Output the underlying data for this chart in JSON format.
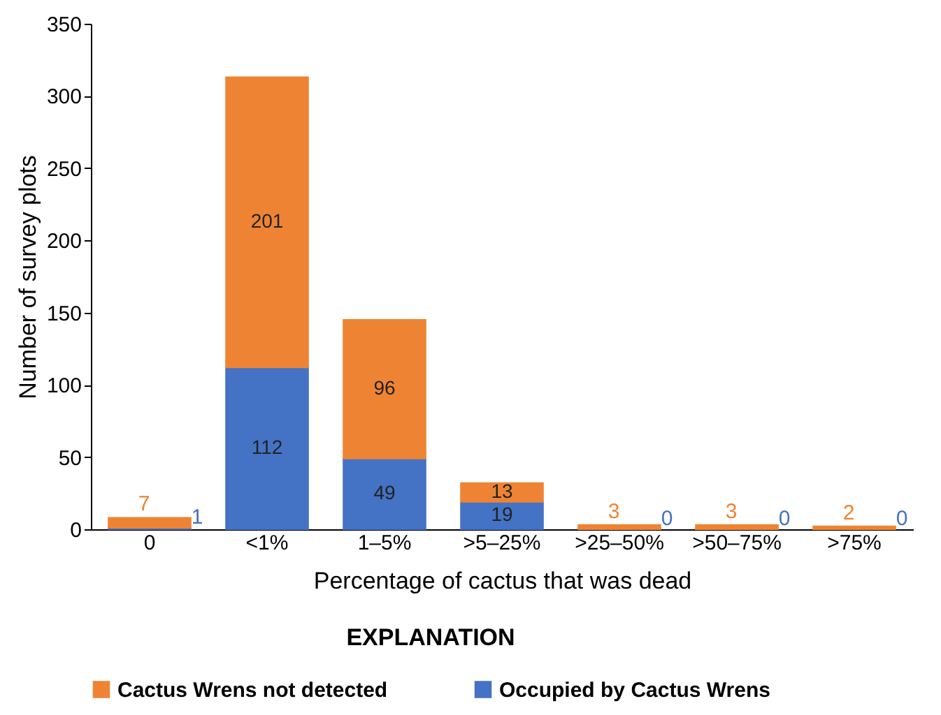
{
  "chart_data": {
    "type": "bar",
    "stacked": true,
    "xlabel": "Percentage of cactus that was dead",
    "ylabel": "Number of survey plots",
    "legend_title": "EXPLANATION",
    "legend": "bottom",
    "grid": false,
    "data_labels": true,
    "categories": [
      "0",
      "<1%",
      "1–5%",
      ">5–25%",
      ">25–50%",
      ">50–75%",
      ">75%"
    ],
    "ylim": [
      0,
      350
    ],
    "yticks": [
      0,
      50,
      100,
      150,
      200,
      250,
      300,
      350
    ],
    "series": [
      {
        "name": "Occupied by Cactus Wrens",
        "color": "#4472c4",
        "values": [
          1,
          112,
          49,
          19,
          0,
          0,
          0
        ]
      },
      {
        "name": "Cactus Wrens not detected",
        "color": "#ee8433",
        "values": [
          7,
          201,
          96,
          13,
          3,
          3,
          2
        ]
      }
    ]
  }
}
